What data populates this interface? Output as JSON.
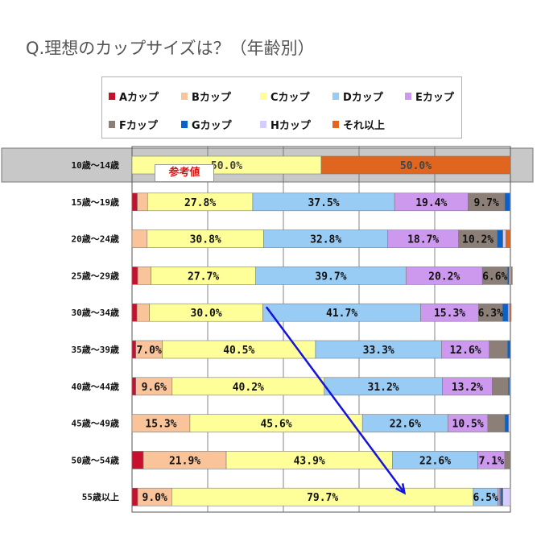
{
  "title": "Q.理想のカップサイズは？（年齢別）",
  "reference_label": "参考値",
  "colors": {
    "A": "#c8102e",
    "B": "#f9c49a",
    "C": "#ffff99",
    "D": "#99ccf5",
    "E": "#cc99ee",
    "F": "#8c7f78",
    "G": "#0a62c8",
    "H": "#d6ccff",
    "Other": "#e0651e"
  },
  "chart_data": {
    "type": "bar",
    "orientation": "horizontal-stacked-100",
    "categories": [
      "10歳～14歳",
      "15歳～19歳",
      "20歳～24歳",
      "25歳～29歳",
      "30歳～34歳",
      "35歳～39歳",
      "40歳～44歳",
      "45歳～49歳",
      "50歳～54歳",
      "55歳以上"
    ],
    "series": [
      {
        "name": "Aカップ",
        "key": "A",
        "values": [
          0,
          1.4,
          0,
          1.5,
          1.3,
          1.0,
          1.0,
          0,
          3.0,
          1.5
        ]
      },
      {
        "name": "Bカップ",
        "key": "B",
        "values": [
          0,
          2.7,
          4.0,
          3.5,
          3.3,
          7.0,
          9.6,
          15.3,
          21.9,
          9.0
        ]
      },
      {
        "name": "Cカップ",
        "key": "C",
        "values": [
          50.0,
          27.8,
          30.8,
          27.7,
          30.0,
          40.5,
          40.2,
          45.6,
          43.9,
          79.7
        ]
      },
      {
        "name": "Dカップ",
        "key": "D",
        "values": [
          0,
          37.5,
          32.8,
          39.7,
          41.7,
          33.3,
          31.2,
          22.6,
          22.6,
          6.5
        ]
      },
      {
        "name": "Eカップ",
        "key": "E",
        "values": [
          0,
          19.4,
          18.7,
          20.2,
          15.3,
          12.6,
          13.2,
          10.5,
          7.1,
          0.5
        ]
      },
      {
        "name": "Fカップ",
        "key": "F",
        "values": [
          0,
          9.7,
          10.2,
          6.6,
          6.3,
          4.8,
          4.2,
          4.5,
          1.5,
          0.3
        ]
      },
      {
        "name": "Gカップ",
        "key": "G",
        "values": [
          0,
          1.4,
          1.5,
          0.5,
          1.5,
          0.8,
          0.4,
          1.0,
          0,
          0.5
        ]
      },
      {
        "name": "Hカップ",
        "key": "H",
        "values": [
          0,
          0,
          0.8,
          0.4,
          0.4,
          0,
          0.2,
          0.5,
          0,
          2.0
        ]
      },
      {
        "name": "それ以上",
        "key": "Other",
        "values": [
          50.0,
          0.1,
          1.2,
          0.4,
          0.4,
          0,
          0,
          0,
          0,
          0
        ]
      }
    ],
    "data_labels": [
      {
        "row": 0,
        "series": "C",
        "text": "50.0%"
      },
      {
        "row": 0,
        "series": "Other",
        "text": "50.0%"
      },
      {
        "row": 1,
        "series": "C",
        "text": "27.8%"
      },
      {
        "row": 1,
        "series": "D",
        "text": "37.5%"
      },
      {
        "row": 1,
        "series": "E",
        "text": "19.4%"
      },
      {
        "row": 1,
        "series": "F",
        "text": "9.7%"
      },
      {
        "row": 2,
        "series": "C",
        "text": "30.8%"
      },
      {
        "row": 2,
        "series": "D",
        "text": "32.8%"
      },
      {
        "row": 2,
        "series": "E",
        "text": "18.7%"
      },
      {
        "row": 2,
        "series": "F",
        "text": "10.2%"
      },
      {
        "row": 3,
        "series": "C",
        "text": "27.7%"
      },
      {
        "row": 3,
        "series": "D",
        "text": "39.7%"
      },
      {
        "row": 3,
        "series": "E",
        "text": "20.2%"
      },
      {
        "row": 3,
        "series": "F",
        "text": "6.6%"
      },
      {
        "row": 4,
        "series": "C",
        "text": "30.0%"
      },
      {
        "row": 4,
        "series": "D",
        "text": "41.7%"
      },
      {
        "row": 4,
        "series": "E",
        "text": "15.3%"
      },
      {
        "row": 4,
        "series": "F",
        "text": "6.3%"
      },
      {
        "row": 5,
        "series": "B",
        "text": "7.0%"
      },
      {
        "row": 5,
        "series": "C",
        "text": "40.5%"
      },
      {
        "row": 5,
        "series": "D",
        "text": "33.3%"
      },
      {
        "row": 5,
        "series": "E",
        "text": "12.6%"
      },
      {
        "row": 6,
        "series": "B",
        "text": "9.6%"
      },
      {
        "row": 6,
        "series": "C",
        "text": "40.2%"
      },
      {
        "row": 6,
        "series": "D",
        "text": "31.2%"
      },
      {
        "row": 6,
        "series": "E",
        "text": "13.2%"
      },
      {
        "row": 7,
        "series": "B",
        "text": "15.3%"
      },
      {
        "row": 7,
        "series": "C",
        "text": "45.6%"
      },
      {
        "row": 7,
        "series": "D",
        "text": "22.6%"
      },
      {
        "row": 7,
        "series": "E",
        "text": "10.5%"
      },
      {
        "row": 8,
        "series": "B",
        "text": "21.9%"
      },
      {
        "row": 8,
        "series": "C",
        "text": "43.9%"
      },
      {
        "row": 8,
        "series": "D",
        "text": "22.6%"
      },
      {
        "row": 8,
        "series": "E",
        "text": "7.1%"
      },
      {
        "row": 9,
        "series": "B",
        "text": "9.0%"
      },
      {
        "row": 9,
        "series": "C",
        "text": "79.7%"
      },
      {
        "row": 9,
        "series": "D",
        "text": "6.5%"
      }
    ],
    "xlim": [
      0,
      100
    ],
    "grid": true,
    "gridline_values": [
      20,
      40,
      60,
      80
    ],
    "legend_placement": "top",
    "reference_row": 0,
    "annotation": {
      "type": "arrow",
      "color": "#1414dc",
      "from_row": 4,
      "from_value": 35.5,
      "to_row": 9,
      "to_value": 72.0
    }
  }
}
